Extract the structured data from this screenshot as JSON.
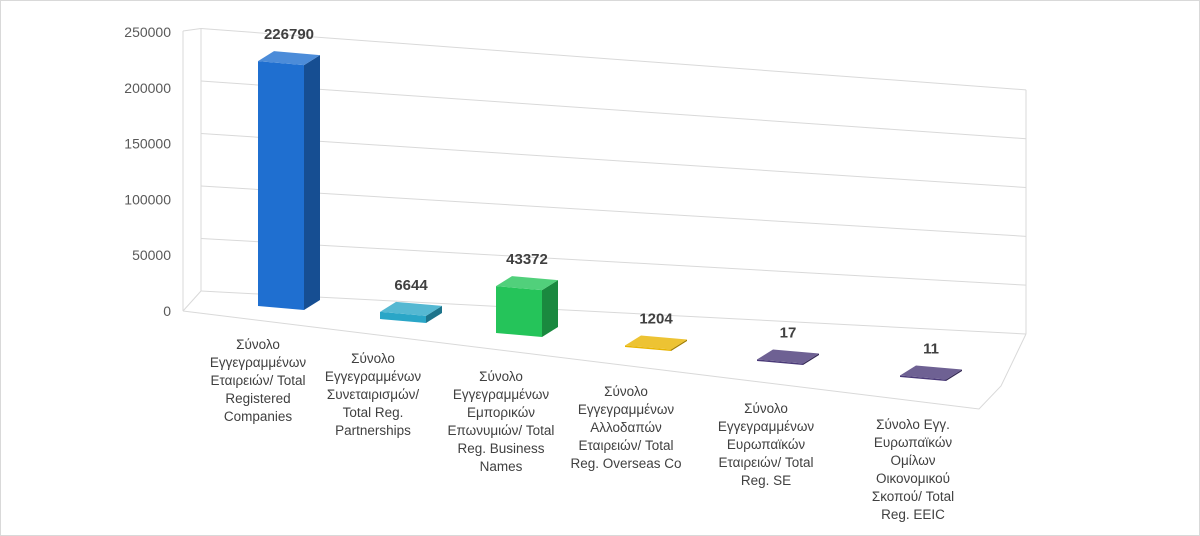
{
  "chart_data": {
    "type": "bar",
    "title": "",
    "xlabel": "",
    "ylabel": "",
    "ylim": [
      0,
      250000
    ],
    "yticks": [
      "0",
      "50000",
      "100000",
      "150000",
      "200000",
      "250000"
    ],
    "grid": true,
    "legend": "none",
    "categories": [
      [
        "Σύνολο",
        "Εγγεγραμμένων",
        "Εταιρειών/ Total",
        "Registered",
        "Companies"
      ],
      [
        "Σύνολο",
        "Εγγεγραμμένων",
        "Συνεταιρισμών/",
        "Total Reg.",
        "Partnerships"
      ],
      [
        "Σύνολο",
        "Εγγεγραμμένων",
        "Εμπορικών",
        "Επωνυμιών/ Total",
        "Reg. Business",
        "Names"
      ],
      [
        "Σύνολο",
        "Εγγεγραμμένων",
        "Αλλοδαπών",
        "Εταιρειών/ Total",
        "Reg. Overseas Co"
      ],
      [
        "Σύνολο",
        "Εγγεγραμμένων",
        "Ευρωπαϊκών",
        "Εταιρειών/ Total",
        "Reg. SE"
      ],
      [
        "Σύνολο Εγγ.",
        "Ευρωπαϊκών",
        "Ομίλων",
        "Οικονομικού",
        "Σκοπού/ Total",
        "Reg. EEIC"
      ]
    ],
    "values": [
      226790,
      6644,
      43372,
      1204,
      17,
      11
    ],
    "data_labels": [
      "226790",
      "6644",
      "43372",
      "1204",
      "17",
      "11"
    ],
    "colors": [
      "#1f6fd0",
      "#2aa6c7",
      "#25c45a",
      "#e8b400",
      "#4a3a78",
      "#4a3a78"
    ]
  }
}
